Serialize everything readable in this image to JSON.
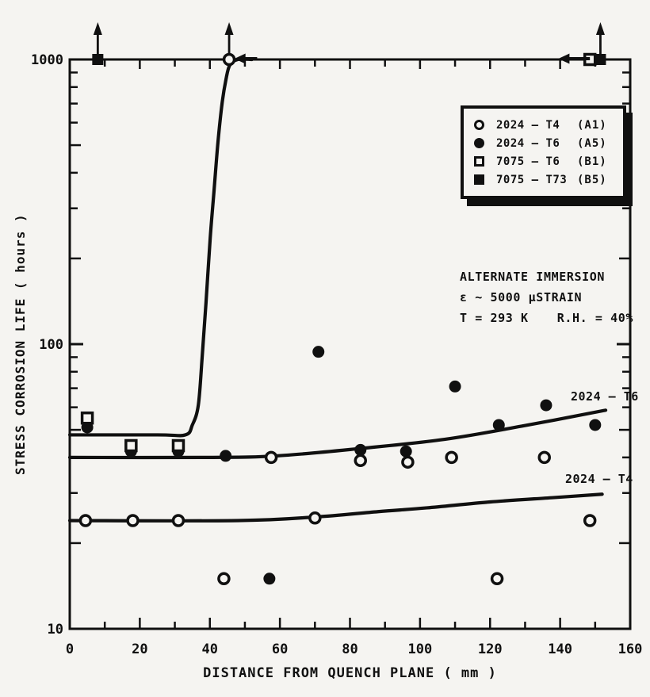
{
  "colors": {
    "paper": "#f5f4f1",
    "ink": "#101010"
  },
  "chart_data": {
    "type": "scatter",
    "title": "",
    "xlabel": "DISTANCE FROM QUENCH PLANE ( mm )",
    "ylabel": "STRESS CORROSION LIFE ( hours )",
    "x_axis": {
      "min": 0,
      "max": 160,
      "minor_tick_step": 10,
      "major_ticks": [
        0,
        20,
        40,
        60,
        80,
        100,
        120,
        140,
        160
      ],
      "tick_labels": [
        "0",
        "20",
        "40",
        "60",
        "80",
        "100",
        "120",
        "140",
        "160"
      ]
    },
    "y_axis": {
      "scale": "log",
      "min": 10,
      "max": 1000,
      "major_ticks": [
        1000,
        100,
        10
      ],
      "tick_labels": [
        "1000",
        "100",
        "10"
      ]
    },
    "grid": false,
    "legend_position": "top-right",
    "series": [
      {
        "name": "2024 – T4",
        "code": "(A1)",
        "marker": "open-circle",
        "points": [
          [
            4.5,
            24
          ],
          [
            18,
            24
          ],
          [
            31,
            24
          ],
          [
            44,
            15
          ],
          [
            57.5,
            40
          ],
          [
            70,
            24.5
          ],
          [
            83,
            39
          ],
          [
            96.5,
            38.5
          ],
          [
            109,
            40
          ],
          [
            122,
            15
          ],
          [
            135.5,
            40
          ],
          [
            148.5,
            24
          ],
          [
            45.5,
            1000
          ]
        ]
      },
      {
        "name": "2024 – T6",
        "code": "(A5)",
        "marker": "filled-circle",
        "points": [
          [
            5,
            51
          ],
          [
            17.5,
            42
          ],
          [
            31,
            42
          ],
          [
            44.5,
            40.5
          ],
          [
            57,
            15
          ],
          [
            71,
            94
          ],
          [
            83,
            42.5
          ],
          [
            96,
            42
          ],
          [
            110,
            71
          ],
          [
            122.5,
            52
          ],
          [
            136,
            61
          ],
          [
            150,
            52
          ]
        ]
      },
      {
        "name": "7075 – T6",
        "code": "(B1)",
        "marker": "open-square",
        "points": [
          [
            5,
            55
          ],
          [
            17.5,
            44
          ],
          [
            31,
            44
          ],
          [
            148.5,
            1000
          ]
        ]
      },
      {
        "name": "7075 – T73",
        "code": "(B5)",
        "marker": "filled-square",
        "points": [
          [
            8,
            1000
          ],
          [
            151.5,
            1000
          ]
        ]
      }
    ],
    "runout_arrows_up_mm": [
      8,
      45.5,
      151.5
    ],
    "runout_arrows_left": [
      {
        "tip_mm": 47,
        "tail_mm": 53.5
      },
      {
        "tip_mm": 139.5,
        "tail_mm": 148.5
      }
    ],
    "fit_curves": [
      {
        "name": "7075 runout curve",
        "label": "",
        "points": [
          [
            0,
            48
          ],
          [
            25,
            48
          ],
          [
            33,
            48
          ],
          [
            35,
            52
          ],
          [
            36.7,
            61
          ],
          [
            37.8,
            90
          ],
          [
            38.9,
            140
          ],
          [
            40.1,
            236
          ],
          [
            41.2,
            347
          ],
          [
            42.3,
            510
          ],
          [
            43.5,
            703
          ],
          [
            44.6,
            851
          ],
          [
            45.7,
            956
          ],
          [
            48,
            1000
          ],
          [
            52,
            1000
          ]
        ]
      },
      {
        "name": "2024-T6 trend",
        "label": "2024 – T6",
        "points": [
          [
            0,
            40
          ],
          [
            39,
            40
          ],
          [
            59,
            40.5
          ],
          [
            83,
            43
          ],
          [
            107,
            46.3
          ],
          [
            129,
            51.5
          ],
          [
            153,
            58.6
          ]
        ]
      },
      {
        "name": "2024-T4 trend",
        "label": "2024 – T4",
        "points": [
          [
            0,
            24
          ],
          [
            48,
            24
          ],
          [
            70,
            24.7
          ],
          [
            88,
            25.8
          ],
          [
            102,
            26.6
          ],
          [
            120,
            27.9
          ],
          [
            138,
            28.9
          ],
          [
            152,
            29.7
          ]
        ]
      }
    ],
    "annotation": {
      "line1": "ALTERNATE IMMERSION",
      "line2": "ε ~ 5000  μSTRAIN",
      "line3_left": "T = 293 K",
      "line3_right": "R.H. = 40%"
    },
    "curve_labels": [
      {
        "text": "2024 – T6"
      },
      {
        "text": "2024 – T4"
      }
    ]
  }
}
